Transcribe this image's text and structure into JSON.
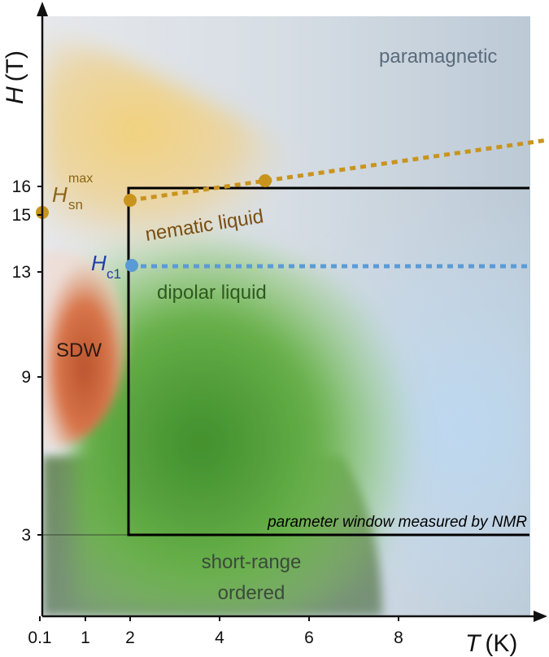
{
  "axes": {
    "x": {
      "symbol": "T",
      "unit": "(K)",
      "ticks": [
        {
          "label": "0.1",
          "value": 0.1
        },
        {
          "label": "1",
          "value": 1
        },
        {
          "label": "2",
          "value": 2
        },
        {
          "label": "4",
          "value": 4
        },
        {
          "label": "6",
          "value": 6
        },
        {
          "label": "8",
          "value": 8
        }
      ],
      "range": [
        0,
        11
      ]
    },
    "y": {
      "symbol": "H",
      "unit": "(T)",
      "ticks": [
        {
          "label": "3",
          "value": 3
        },
        {
          "label": "9",
          "value": 9
        },
        {
          "label": "13",
          "value": 13
        },
        {
          "label": "15",
          "value": 15
        },
        {
          "label": "16",
          "value": 16
        }
      ],
      "range": [
        0,
        20
      ]
    }
  },
  "regions": {
    "paramagnetic": "paramagnetic",
    "nematic_liquid": "nematic liquid",
    "dipolar_liquid": "dipolar liquid",
    "sdw": "SDW",
    "short_range_1": "short-range",
    "short_range_2": "ordered"
  },
  "labels": {
    "hsn_main": "H",
    "hsn_sub": "sn",
    "hsn_sup": "max",
    "hc1_main": "H",
    "hc1_sub": "c1",
    "nmr_window": "parameter window measured by NMR"
  },
  "chart_data": {
    "type": "phase-diagram",
    "nmr_window": {
      "T": [
        2,
        11
      ],
      "H": [
        3,
        16
      ]
    },
    "nematic_boundary_points": [
      {
        "T": 0.1,
        "H": 15
      },
      {
        "T": 2,
        "H": 15.3
      },
      {
        "T": 5,
        "H": 16.1
      }
    ],
    "nematic_boundary_dotted_end": {
      "T": 11,
      "H": 17.6
    },
    "hc1_point": {
      "T": 2,
      "H": 13
    },
    "hc1_dotted_end": {
      "T": 11,
      "H": 13
    }
  },
  "colors": {
    "nematic": "#c9941e",
    "hc1": "#5b9bd5",
    "hc1_label": "#1f3fa8",
    "paramagnetic_text": "#5a6b7a",
    "nematic_text": "#7a4e10",
    "dipolar_text": "#2e5a1e",
    "sdw_text": "#2a1a12",
    "short_range_text": "#3a4a3a"
  }
}
